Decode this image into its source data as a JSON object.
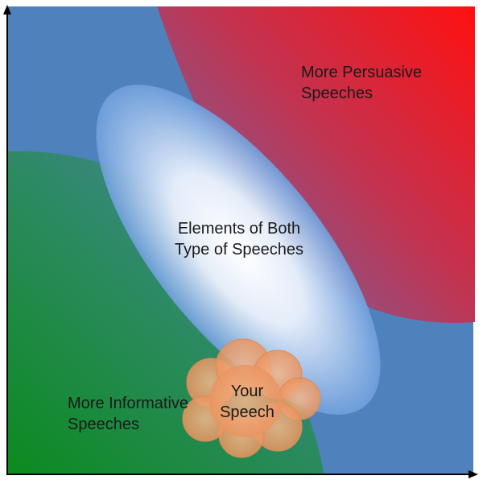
{
  "regions": {
    "persuasive": {
      "line1": "More Persuasive",
      "line2": "Speeches",
      "color": "#ff1a10"
    },
    "informative": {
      "line1": "More Informative",
      "line2": "Speeches",
      "color": "#0f8a2a"
    },
    "both": {
      "line1": "Elements of Both",
      "line2": "Type of Speeches"
    },
    "yours": {
      "line1": "Your",
      "line2": "Speech",
      "color": "#f0a06a"
    }
  },
  "colors": {
    "background": "#4f81bd",
    "axis": "#000000"
  }
}
